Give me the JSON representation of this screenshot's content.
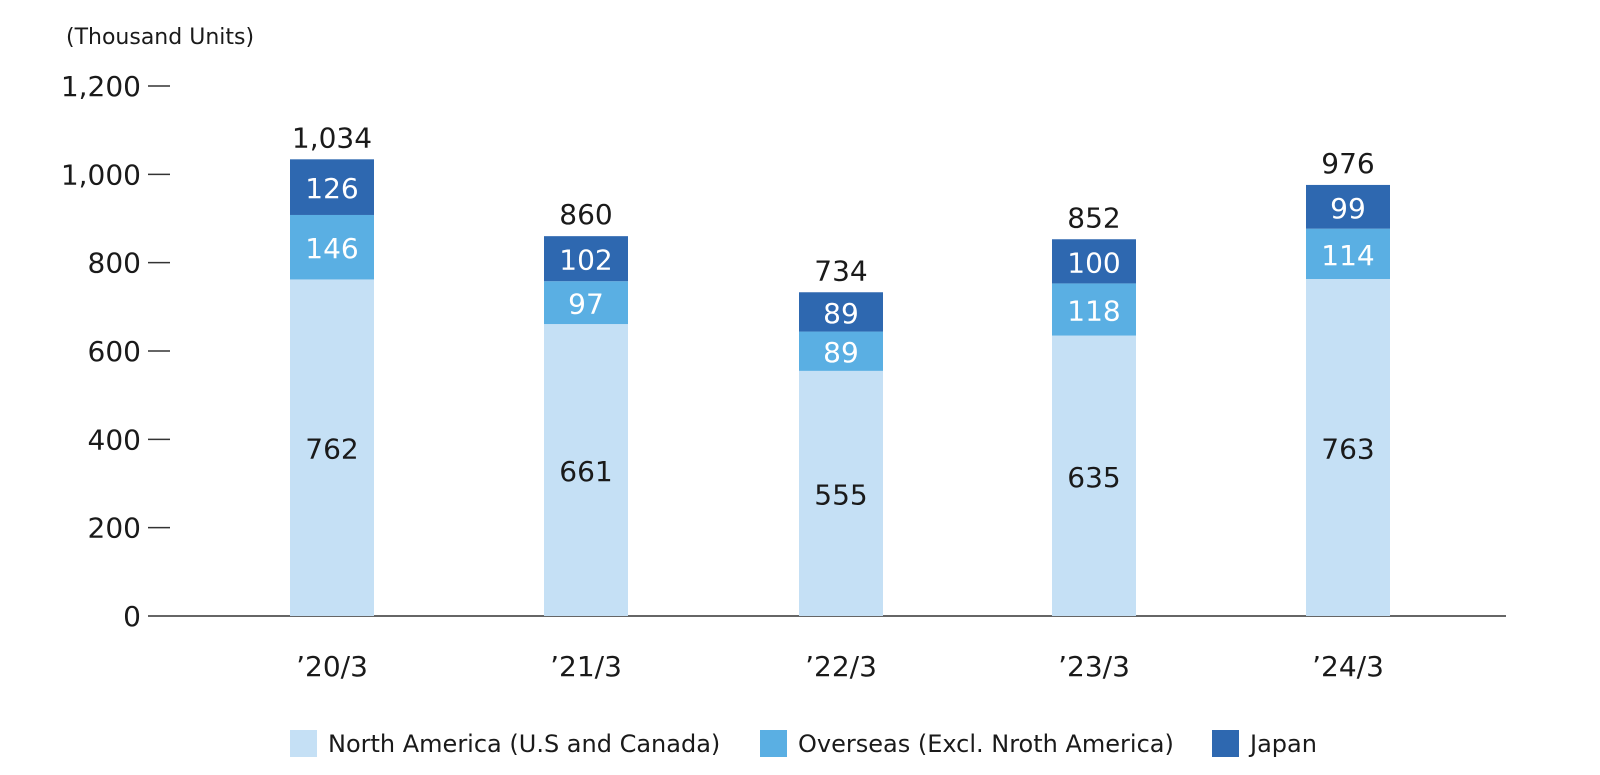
{
  "chart_data": {
    "type": "bar",
    "stacked": true,
    "unit_label": "(Thousand Units)",
    "categories": [
      "’20/3",
      "’21/3",
      "’22/3",
      "’23/3",
      "’24/3"
    ],
    "series": [
      {
        "name": "North America (U.S and Canada)",
        "color": "#c5e0f5",
        "label_color": "#1a1a1a",
        "values": [
          762,
          661,
          555,
          635,
          763
        ]
      },
      {
        "name": "Overseas (Excl. Nroth America)",
        "color": "#5aafe3",
        "label_color": "#ffffff",
        "values": [
          146,
          97,
          89,
          118,
          114
        ]
      },
      {
        "name": "Japan",
        "color": "#2e68b0",
        "label_color": "#ffffff",
        "values": [
          126,
          102,
          89,
          100,
          99
        ]
      }
    ],
    "totals": [
      "1,034",
      "860",
      "734",
      "852",
      "976"
    ],
    "y_ticks": [
      "0",
      "200",
      "400",
      "600",
      "800",
      "1,000",
      "1,200"
    ],
    "y_tick_values": [
      0,
      200,
      400,
      600,
      800,
      1000,
      1200
    ],
    "ylim": [
      0,
      1200
    ],
    "grid": false,
    "legend_position": "bottom"
  }
}
